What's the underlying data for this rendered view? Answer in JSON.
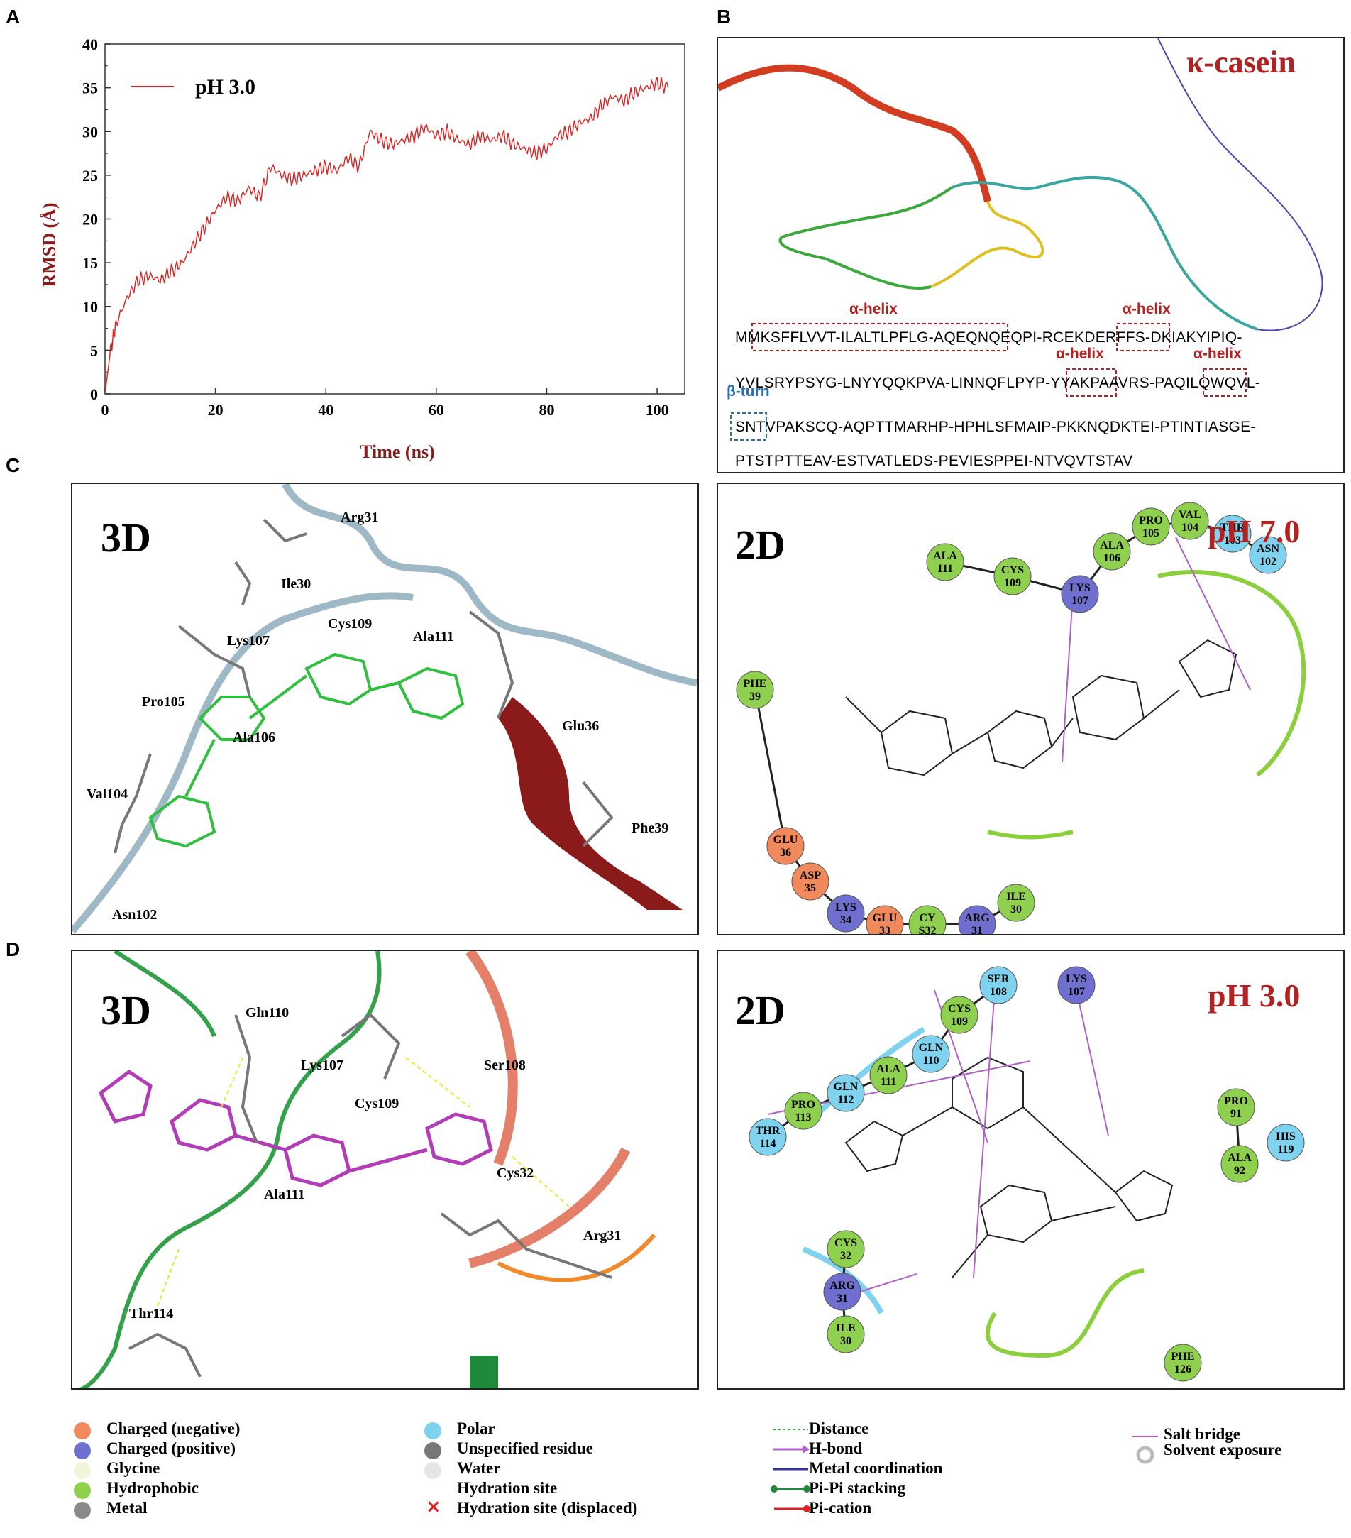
{
  "panels": {
    "a": "A",
    "b": "B",
    "c": "C",
    "d": "D"
  },
  "panel_a": {
    "chart_data": {
      "type": "line",
      "xlabel": "Time (ns)",
      "ylabel": "RMSD (Å)",
      "xlim": [
        0,
        105
      ],
      "ylim": [
        0,
        40
      ],
      "xticks": [
        "0",
        "20",
        "40",
        "60",
        "80",
        "100"
      ],
      "yticks": [
        "0",
        "5",
        "10",
        "15",
        "20",
        "25",
        "30",
        "35",
        "40"
      ],
      "legend_position": "top-left",
      "series": [
        {
          "name": "pH 3.0",
          "color": "#e02020",
          "x": [
            0,
            1,
            2,
            4,
            6,
            8,
            10,
            12,
            14,
            16,
            18,
            20,
            22,
            24,
            26,
            28,
            30,
            32,
            34,
            36,
            38,
            40,
            42,
            44,
            46,
            48,
            50,
            52,
            54,
            56,
            58,
            60,
            62,
            64,
            66,
            68,
            70,
            72,
            74,
            76,
            78,
            80,
            82,
            84,
            86,
            88,
            90,
            92,
            94,
            96,
            98,
            100,
            102
          ],
          "y": [
            0,
            5,
            8,
            11,
            13,
            13.5,
            13,
            14,
            15,
            17,
            19,
            21,
            22.5,
            22,
            23.5,
            22.5,
            26,
            25,
            24.5,
            25,
            25.5,
            26,
            25.5,
            27,
            26,
            30,
            29,
            28.5,
            29,
            29.5,
            30.5,
            29.5,
            30,
            29,
            28.5,
            29.5,
            29,
            29.5,
            28.5,
            28,
            27.5,
            28,
            29.5,
            30,
            31,
            31.5,
            33,
            34,
            33.5,
            34.5,
            35,
            35.5,
            35
          ]
        }
      ]
    }
  },
  "panel_b": {
    "title": "κ-casein",
    "annotations": [
      "α-helix",
      "α-helix",
      "α-helix",
      "α-helix",
      "β-turn"
    ],
    "sequence": [
      "MMKSFFLVVT-ILALTLPFLG-AQEQNQEQPI-RCEKDERFFS-DKIAKYIPIQ-",
      "YVLSRYPSYG-LNYYQQKPVA-LINNQFLPYP-YYAKPAAVRS-PAQILQWQVL-",
      "SNTVPAKSCQ-AQPTTMARHP-HPHLSFMAIP-PKKNQDKTEI-PTINTIASGE-",
      "PTSTPTTEAV-ESTVATLEDS-PEVIESPPEI-NTVQVTSTAV"
    ]
  },
  "panel_c3d": {
    "tag": "3D",
    "labels": [
      "Arg31",
      "Ile30",
      "Lys107",
      "Cys109",
      "Ala111",
      "Pro105",
      "Ala106",
      "Glu36",
      "Val104",
      "Phe39",
      "Asn102"
    ]
  },
  "panel_c2d": {
    "tag": "2D",
    "ph": "pH 7.0",
    "residues": [
      {
        "t": "PRO",
        "n": "105",
        "type": "hydrophobic"
      },
      {
        "t": "VAL",
        "n": "104",
        "type": "hydrophobic"
      },
      {
        "t": "THR",
        "n": "103",
        "type": "polar"
      },
      {
        "t": "ASN",
        "n": "102",
        "type": "polar"
      },
      {
        "t": "ALA",
        "n": "106",
        "type": "hydrophobic"
      },
      {
        "t": "ALA",
        "n": "111",
        "type": "hydrophobic"
      },
      {
        "t": "CYS",
        "n": "109",
        "type": "hydrophobic"
      },
      {
        "t": "LYS",
        "n": "107",
        "type": "positive"
      },
      {
        "t": "PHE",
        "n": "39",
        "type": "hydrophobic"
      },
      {
        "t": "GLU",
        "n": "36",
        "type": "negative"
      },
      {
        "t": "ASP",
        "n": "35",
        "type": "negative"
      },
      {
        "t": "LYS",
        "n": "34",
        "type": "positive"
      },
      {
        "t": "GLU",
        "n": "33",
        "type": "negative"
      },
      {
        "t": "CY",
        "n": "S32",
        "type": "hydrophobic"
      },
      {
        "t": "ARG",
        "n": "31",
        "type": "positive"
      },
      {
        "t": "ILE",
        "n": "30",
        "type": "hydrophobic"
      }
    ]
  },
  "panel_d3d": {
    "tag": "3D",
    "labels": [
      "Gln110",
      "Lys107",
      "Ser108",
      "Cys109",
      "Ala111",
      "Cys32",
      "Arg31",
      "Thr114"
    ]
  },
  "panel_d2d": {
    "tag": "2D",
    "ph": "pH 3.0",
    "residues": [
      {
        "t": "SER",
        "n": "108",
        "type": "polar"
      },
      {
        "t": "LYS",
        "n": "107",
        "type": "positive"
      },
      {
        "t": "CYS",
        "n": "109",
        "type": "hydrophobic"
      },
      {
        "t": "GLN",
        "n": "110",
        "type": "polar"
      },
      {
        "t": "ALA",
        "n": "111",
        "type": "hydrophobic"
      },
      {
        "t": "GLN",
        "n": "112",
        "type": "polar"
      },
      {
        "t": "PRO",
        "n": "113",
        "type": "hydrophobic"
      },
      {
        "t": "THR",
        "n": "114",
        "type": "polar"
      },
      {
        "t": "PRO",
        "n": "91",
        "type": "hydrophobic"
      },
      {
        "t": "HIS",
        "n": "119",
        "type": "polar"
      },
      {
        "t": "ALA",
        "n": "92",
        "type": "hydrophobic"
      },
      {
        "t": "CYS",
        "n": "32",
        "type": "hydrophobic"
      },
      {
        "t": "ARG",
        "n": "31",
        "type": "positive"
      },
      {
        "t": "ILE",
        "n": "30",
        "type": "hydrophobic"
      },
      {
        "t": "PHE",
        "n": "126",
        "type": "hydrophobic"
      }
    ]
  },
  "colors": {
    "negative": "#f08a5d",
    "positive": "#6f6fd0",
    "glycine": "#f2f4dc",
    "hydrophobic": "#8fd14f",
    "metal": "#8a8a8a",
    "polar": "#7fd3ee",
    "unspecified": "#777777",
    "water": "#e6e6e6",
    "red_text": "#b22222"
  },
  "legend": {
    "col1": [
      "Charged (negative)",
      "Charged (positive)",
      "Glycine",
      "Hydrophobic",
      "Metal"
    ],
    "col2": [
      "Polar",
      "Unspecified residue",
      "Water",
      "Hydration site",
      "Hydration site (displaced)"
    ],
    "col3": [
      "Distance",
      "H-bond",
      "Metal coordination",
      "Pi-Pi stacking",
      "Pi-cation"
    ],
    "col4": [
      "Salt bridge",
      "Solvent exposure"
    ]
  }
}
